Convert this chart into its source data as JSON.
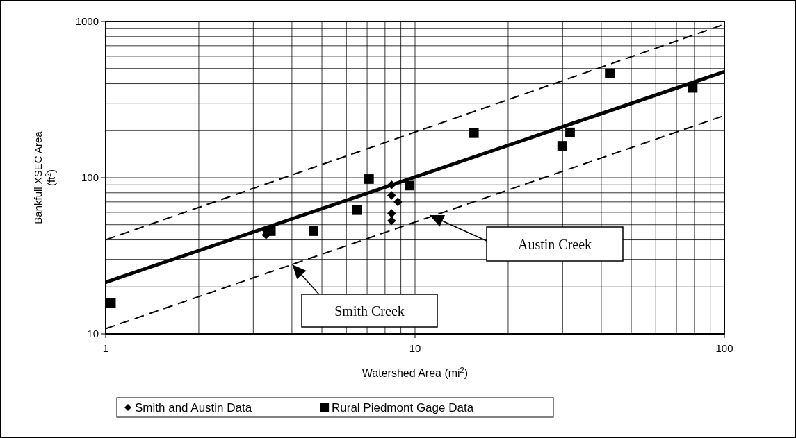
{
  "chart_data": {
    "type": "scatter",
    "xlabel": "Watershed Area (mi$^{2}$)",
    "ylabel": "Bankfull XSEC Area (ft$^{2}$)",
    "log": "xy",
    "xlim": [
      1,
      100
    ],
    "ylim": [
      10,
      1000
    ],
    "xticks": [
      1,
      10,
      100
    ],
    "yticks": [
      10,
      100,
      1000
    ],
    "grid": true,
    "legend": "bottom",
    "series": [
      {
        "name": "Smith and Austin Data",
        "marker": "diamond",
        "color": "#000000",
        "x": [
          3.3,
          3.3,
          8.4,
          8.4,
          8.4,
          8.4,
          8.8
        ],
        "values": [
          46,
          43,
          90,
          77,
          59,
          53,
          70
        ]
      },
      {
        "name": "Rural Piedmont Gage Data",
        "marker": "square",
        "color": "#000000",
        "x": [
          1.04,
          3.42,
          4.7,
          6.5,
          7.1,
          9.6,
          15.5,
          29.9,
          31.7,
          42.6,
          79
        ],
        "values": [
          15.7,
          45.5,
          45.5,
          62,
          98,
          89,
          193,
          160,
          195,
          466,
          376
        ]
      },
      {
        "type": "line",
        "line_style": "solid",
        "marker": "none",
        "color": "#000000",
        "x": [
          1,
          100
        ],
        "values": [
          21.4,
          477
        ]
      },
      {
        "type": "line",
        "line_style": "dashed",
        "marker": "none",
        "color": "#000000",
        "x": [
          1,
          100
        ],
        "values": [
          40,
          960
        ]
      },
      {
        "type": "line",
        "line_style": "dashed",
        "marker": "none",
        "color": "#000000",
        "x": [
          1,
          100
        ],
        "values": [
          10.8,
          250
        ]
      }
    ],
    "annotations": [
      {
        "text": "Smith Creek",
        "x": 4,
        "y": 28
      },
      "Austin Creek"
    ]
  }
}
